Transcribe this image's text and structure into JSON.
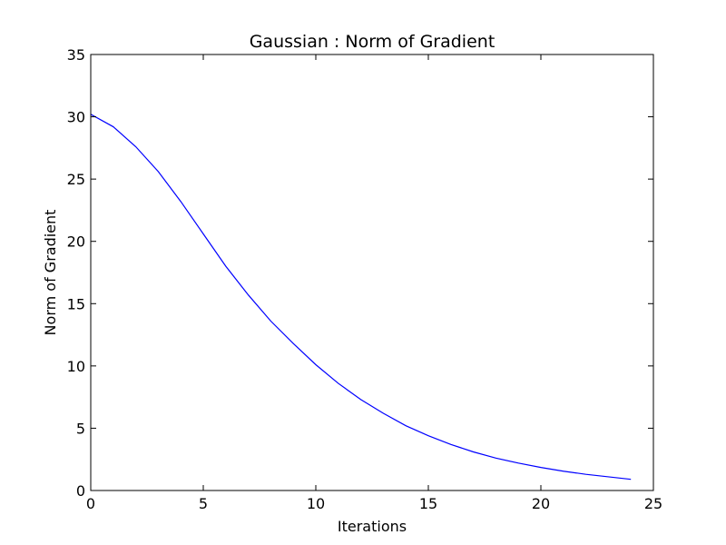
{
  "chart_data": {
    "type": "line",
    "title": "Gaussian : Norm of Gradient",
    "xlabel": "Iterations",
    "ylabel": "Norm of Gradient",
    "xlim": [
      0,
      25
    ],
    "ylim": [
      0,
      35
    ],
    "xticks": [
      0,
      5,
      10,
      15,
      20,
      25
    ],
    "yticks": [
      0,
      5,
      10,
      15,
      20,
      25,
      30,
      35
    ],
    "grid": false,
    "series": [
      {
        "color": "#0000ff",
        "x": [
          0,
          1,
          2,
          3,
          4,
          5,
          6,
          7,
          8,
          9,
          10,
          11,
          12,
          13,
          14,
          15,
          16,
          17,
          18,
          19,
          20,
          21,
          22,
          23,
          24
        ],
        "values": [
          30.2,
          29.2,
          27.6,
          25.6,
          23.2,
          20.6,
          18.0,
          15.7,
          13.6,
          11.8,
          10.1,
          8.6,
          7.3,
          6.2,
          5.2,
          4.4,
          3.7,
          3.1,
          2.6,
          2.2,
          1.85,
          1.55,
          1.3,
          1.1,
          0.9
        ]
      }
    ]
  }
}
